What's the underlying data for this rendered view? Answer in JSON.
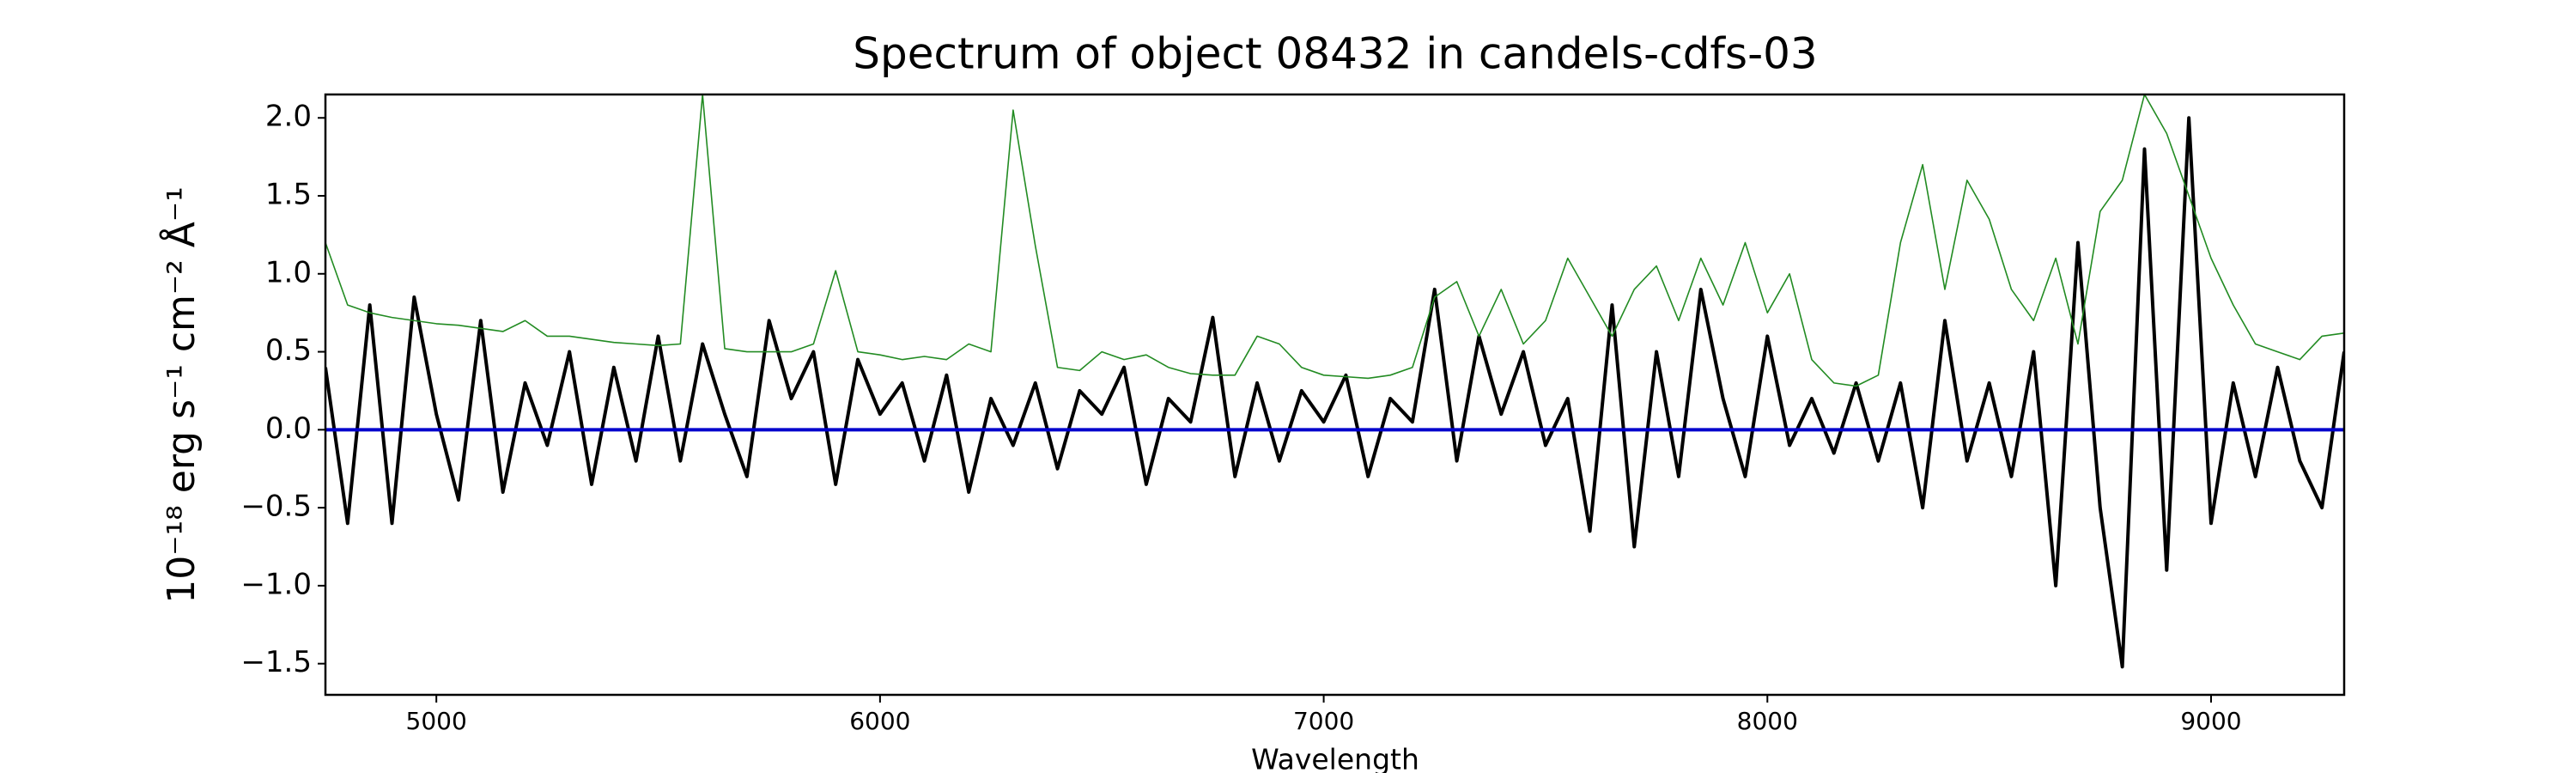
{
  "chart_data": {
    "type": "line",
    "title": "Spectrum of object 08432 in candels-cdfs-03",
    "x_label": "Wavelength",
    "y_label": "10⁻¹⁸ erg s⁻¹ cm⁻² Å⁻¹",
    "xlim": [
      4750,
      9300
    ],
    "ylim": [
      -1.7,
      2.15
    ],
    "xticks": [
      5000,
      6000,
      7000,
      8000,
      9000
    ],
    "yticks": [
      {
        "value": -1.5,
        "label": "−1.5"
      },
      {
        "value": -1.0,
        "label": "−1.0"
      },
      {
        "value": -0.5,
        "label": "−0.5"
      },
      {
        "value": 0,
        "label": "0.0"
      },
      0.5,
      {
        "value": 1.0,
        "label": "1.0"
      },
      1.5,
      {
        "value": 2.0,
        "label": "2.0"
      }
    ],
    "grid": false,
    "x": [
      4750,
      4800,
      4850,
      4900,
      4950,
      5000,
      5050,
      5100,
      5150,
      5200,
      5250,
      5300,
      5350,
      5400,
      5450,
      5500,
      5550,
      5600,
      5650,
      5700,
      5750,
      5800,
      5850,
      5900,
      5950,
      6000,
      6050,
      6100,
      6150,
      6200,
      6250,
      6300,
      6350,
      6400,
      6450,
      6500,
      6550,
      6600,
      6650,
      6700,
      6750,
      6800,
      6850,
      6900,
      6950,
      7000,
      7050,
      7100,
      7150,
      7200,
      7250,
      7300,
      7350,
      7400,
      7450,
      7500,
      7550,
      7600,
      7650,
      7700,
      7750,
      7800,
      7850,
      7900,
      7950,
      8000,
      8050,
      8100,
      8150,
      8200,
      8250,
      8300,
      8350,
      8400,
      8450,
      8500,
      8550,
      8600,
      8650,
      8700,
      8750,
      8800,
      8850,
      8900,
      8950,
      9000,
      9050,
      9100,
      9150,
      9200,
      9250,
      9300
    ],
    "series": [
      {
        "color": "#000000",
        "width": 4,
        "values": [
          0.4,
          -0.6,
          0.8,
          -0.6,
          0.85,
          0.1,
          -0.45,
          0.7,
          -0.4,
          0.3,
          -0.1,
          0.5,
          -0.35,
          0.4,
          -0.2,
          0.6,
          -0.2,
          0.55,
          0.1,
          -0.3,
          0.7,
          0.2,
          0.5,
          -0.35,
          0.45,
          0.1,
          0.3,
          -0.2,
          0.35,
          -0.4,
          0.2,
          -0.1,
          0.3,
          -0.25,
          0.25,
          0.1,
          0.4,
          -0.35,
          0.2,
          0.05,
          0.72,
          -0.3,
          0.3,
          -0.2,
          0.25,
          0.05,
          0.35,
          -0.3,
          0.2,
          0.05,
          0.9,
          -0.2,
          0.6,
          0.1,
          0.5,
          -0.1,
          0.2,
          -0.65,
          0.8,
          -0.75,
          0.5,
          -0.3,
          0.9,
          0.2,
          -0.3,
          0.6,
          -0.1,
          0.2,
          -0.15,
          0.3,
          -0.2,
          0.3,
          -0.5,
          0.7,
          -0.2,
          0.3,
          -0.3,
          0.5,
          -1.0,
          1.2,
          -0.5,
          -1.52,
          1.8,
          -0.9,
          2.0,
          -0.6,
          0.3,
          -0.3,
          0.4,
          -0.2,
          -0.5,
          0.5
        ]
      },
      {
        "color": "#228b22",
        "width": 1.6,
        "values": [
          1.2,
          0.8,
          0.75,
          0.72,
          0.7,
          0.68,
          0.67,
          0.65,
          0.63,
          0.7,
          0.6,
          0.6,
          0.58,
          0.56,
          0.55,
          0.54,
          0.55,
          2.15,
          0.52,
          0.5,
          0.5,
          0.5,
          0.55,
          1.02,
          0.5,
          0.48,
          0.45,
          0.47,
          0.45,
          0.55,
          0.5,
          2.05,
          1.18,
          0.4,
          0.38,
          0.5,
          0.45,
          0.48,
          0.4,
          0.36,
          0.35,
          0.35,
          0.6,
          0.55,
          0.4,
          0.35,
          0.34,
          0.33,
          0.35,
          0.4,
          0.85,
          0.95,
          0.6,
          0.9,
          0.55,
          0.7,
          1.1,
          0.85,
          0.6,
          0.9,
          1.05,
          0.7,
          1.1,
          0.8,
          1.2,
          0.75,
          1.0,
          0.45,
          0.3,
          0.28,
          0.35,
          1.2,
          1.7,
          0.9,
          1.6,
          1.35,
          0.9,
          0.7,
          1.1,
          0.55,
          1.4,
          1.6,
          2.15,
          1.9,
          1.5,
          1.1,
          0.8,
          0.55,
          0.5,
          0.45,
          0.6,
          0.62
        ]
      },
      {
        "color": "#0000cc",
        "width": 4,
        "x": [
          4750,
          9300
        ],
        "values": [
          0,
          0
        ]
      }
    ]
  }
}
